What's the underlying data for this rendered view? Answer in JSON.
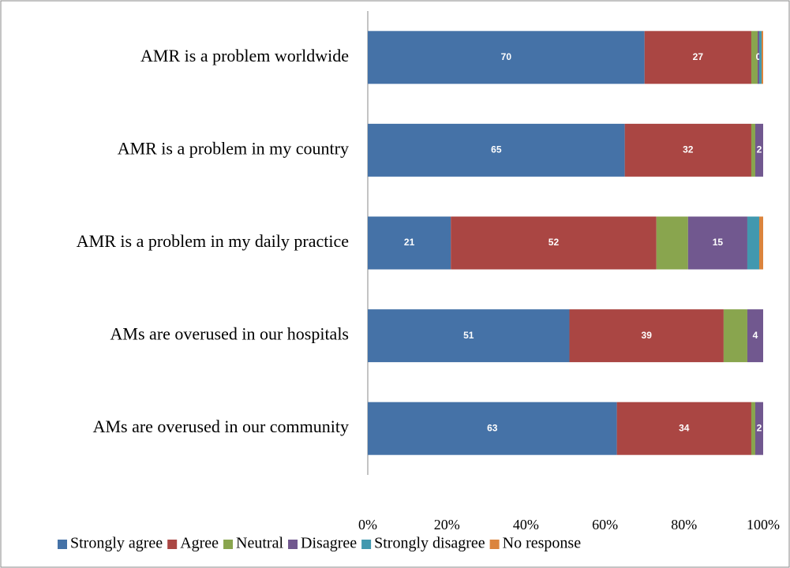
{
  "chart_data": {
    "type": "stacked-bar-horizontal",
    "categories": [
      "AMR is a problem worldwide",
      "AMR is a problem in my country",
      "AMR is a problem in my daily practice",
      "AMs are overused in our hospitals",
      "AMs are overused in our community"
    ],
    "series": [
      {
        "name": "Strongly agree",
        "color": "#4572a7",
        "values": [
          70,
          65,
          21,
          51,
          63
        ],
        "value_labels": [
          "70",
          "65",
          "21",
          "51",
          "63"
        ]
      },
      {
        "name": "Agree",
        "color": "#aa4643",
        "values": [
          27,
          32,
          52,
          39,
          34
        ],
        "value_labels": [
          "27",
          "32",
          "52",
          "39",
          "34"
        ]
      },
      {
        "name": "Neutral",
        "color": "#89a54e",
        "values": [
          1.6,
          1,
          8,
          6,
          1
        ],
        "value_labels": [
          null,
          null,
          null,
          null,
          null
        ]
      },
      {
        "name": "Disagree",
        "color": "#71588f",
        "values": [
          0.4,
          2,
          15,
          4,
          2
        ],
        "value_labels": [
          "0",
          "2",
          "15",
          "4",
          "2"
        ]
      },
      {
        "name": "Strongly disagree",
        "color": "#4198af",
        "values": [
          0.6,
          0,
          3,
          0,
          0
        ],
        "value_labels": [
          null,
          null,
          null,
          null,
          null
        ]
      },
      {
        "name": "No response",
        "color": "#db843d",
        "values": [
          0.4,
          0,
          1,
          0,
          0
        ],
        "value_labels": [
          null,
          null,
          null,
          null,
          null
        ]
      }
    ],
    "xlim": [
      0,
      100
    ],
    "xticks": [
      {
        "value": 0,
        "label": "0%"
      },
      {
        "value": 20,
        "label": "20%"
      },
      {
        "value": 40,
        "label": "40%"
      },
      {
        "value": 60,
        "label": "60%"
      },
      {
        "value": 80,
        "label": "80%"
      },
      {
        "value": 100,
        "label": "100%"
      }
    ],
    "legend": "bottom"
  }
}
